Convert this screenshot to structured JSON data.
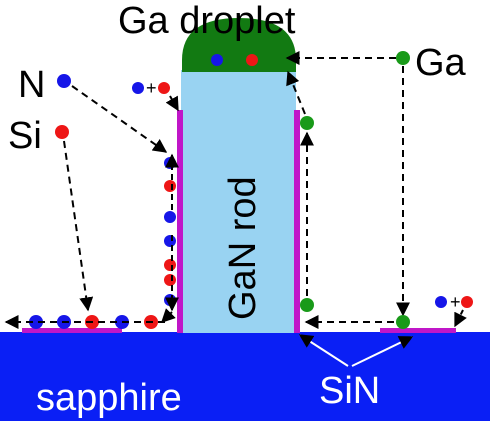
{
  "labels": {
    "droplet": "Ga droplet",
    "ga": "Ga",
    "n": "N",
    "si": "Si",
    "rod": "GaN rod",
    "substrate": "sapphire",
    "sin": "SiN",
    "plus": "+"
  },
  "colors": {
    "substrate": "#0a1ff5",
    "rod": "#99d3f2",
    "droplet": "#127a12",
    "sin_layer": "#c016c8",
    "n_atom": "#1616e8",
    "si_atom": "#ee1616",
    "ga_atom": "#199a19",
    "arrow": "#000000"
  }
}
